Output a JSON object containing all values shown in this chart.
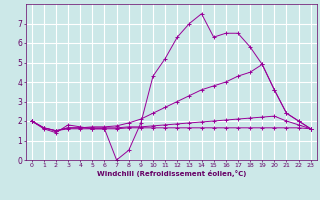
{
  "xlabel": "Windchill (Refroidissement éolien,°C)",
  "bg_color": "#cce8e8",
  "grid_color": "#ffffff",
  "line_color": "#990099",
  "text_color": "#660066",
  "xlim": [
    -0.5,
    23.5
  ],
  "ylim": [
    0,
    8
  ],
  "xticks": [
    0,
    1,
    2,
    3,
    4,
    5,
    6,
    7,
    8,
    9,
    10,
    11,
    12,
    13,
    14,
    15,
    16,
    17,
    18,
    19,
    20,
    21,
    22,
    23
  ],
  "yticks": [
    0,
    1,
    2,
    3,
    4,
    5,
    6,
    7
  ],
  "series": [
    {
      "x": [
        0,
        1,
        2,
        3,
        4,
        5,
        6,
        7,
        8,
        9,
        10,
        11,
        12,
        13,
        14,
        15,
        16,
        17,
        18,
        19,
        20,
        21,
        22,
        23
      ],
      "y": [
        2.0,
        1.6,
        1.4,
        1.8,
        1.7,
        1.6,
        1.6,
        0.0,
        0.5,
        1.9,
        4.3,
        5.2,
        6.3,
        7.0,
        7.5,
        6.3,
        6.5,
        6.5,
        5.8,
        4.9,
        3.6,
        2.4,
        2.0,
        1.6
      ]
    },
    {
      "x": [
        0,
        1,
        2,
        3,
        4,
        5,
        6,
        7,
        8,
        9,
        10,
        11,
        12,
        13,
        14,
        15,
        16,
        17,
        18,
        19,
        20,
        21,
        22,
        23
      ],
      "y": [
        2.0,
        1.65,
        1.5,
        1.65,
        1.65,
        1.7,
        1.7,
        1.75,
        1.9,
        2.1,
        2.4,
        2.7,
        3.0,
        3.3,
        3.6,
        3.8,
        4.0,
        4.3,
        4.5,
        4.9,
        3.6,
        2.4,
        2.0,
        1.6
      ]
    },
    {
      "x": [
        0,
        1,
        2,
        3,
        4,
        5,
        6,
        7,
        8,
        9,
        10,
        11,
        12,
        13,
        14,
        15,
        16,
        17,
        18,
        19,
        20,
        21,
        22,
        23
      ],
      "y": [
        2.0,
        1.65,
        1.5,
        1.65,
        1.65,
        1.65,
        1.65,
        1.65,
        1.7,
        1.7,
        1.75,
        1.8,
        1.85,
        1.9,
        1.95,
        2.0,
        2.05,
        2.1,
        2.15,
        2.2,
        2.25,
        2.0,
        1.8,
        1.6
      ]
    },
    {
      "x": [
        0,
        1,
        2,
        3,
        4,
        5,
        6,
        7,
        8,
        9,
        10,
        11,
        12,
        13,
        14,
        15,
        16,
        17,
        18,
        19,
        20,
        21,
        22,
        23
      ],
      "y": [
        2.0,
        1.65,
        1.5,
        1.6,
        1.6,
        1.6,
        1.6,
        1.6,
        1.65,
        1.65,
        1.65,
        1.65,
        1.65,
        1.65,
        1.65,
        1.65,
        1.65,
        1.65,
        1.65,
        1.65,
        1.65,
        1.65,
        1.65,
        1.6
      ]
    }
  ]
}
